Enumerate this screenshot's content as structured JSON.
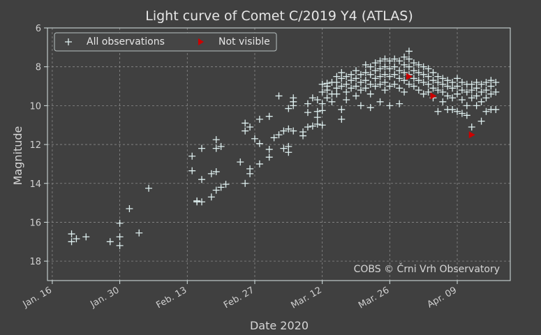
{
  "colors": {
    "background": "#404040",
    "axes_edge": "#d8e4e4",
    "grid": "#8a8a8a",
    "observation_marker": "#ddeeee",
    "not_visible_marker": "#cc0000"
  },
  "chart_data": {
    "type": "scatter",
    "title": "Light curve of Comet C/2019 Y4 (ATLAS)",
    "xlabel": "Date 2020",
    "ylabel": "Magnitude",
    "xlim": [
      "2020-01-15",
      "2020-04-20"
    ],
    "ylim": [
      19,
      6
    ],
    "y_inverted": true,
    "grid": true,
    "grid_style": "dashed",
    "legend_position": "top-left",
    "credit": "COBS © Črni Vrh Observatory",
    "xticks": [
      {
        "date": "2020-01-16",
        "label": "Jan. 16"
      },
      {
        "date": "2020-01-30",
        "label": "Jan. 30"
      },
      {
        "date": "2020-02-13",
        "label": "Feb. 13"
      },
      {
        "date": "2020-02-27",
        "label": "Feb. 27"
      },
      {
        "date": "2020-03-12",
        "label": "Mar. 12"
      },
      {
        "date": "2020-03-26",
        "label": "Mar. 26"
      },
      {
        "date": "2020-04-09",
        "label": "Apr. 09"
      }
    ],
    "yticks": [
      6,
      8,
      10,
      12,
      14,
      16,
      18
    ],
    "series": [
      {
        "name": "All observations",
        "marker": "+",
        "points": [
          [
            "2020-01-20",
            16.6
          ],
          [
            "2020-01-20",
            17.0
          ],
          [
            "2020-01-21",
            16.85
          ],
          [
            "2020-01-23",
            16.75
          ],
          [
            "2020-01-28",
            17.0
          ],
          [
            "2020-01-30",
            16.05
          ],
          [
            "2020-01-30",
            16.75
          ],
          [
            "2020-01-30",
            17.2
          ],
          [
            "2020-02-01",
            15.3
          ],
          [
            "2020-02-03",
            16.55
          ],
          [
            "2020-02-05",
            14.25
          ],
          [
            "2020-02-14",
            12.6
          ],
          [
            "2020-02-14",
            13.35
          ],
          [
            "2020-02-15",
            14.9
          ],
          [
            "2020-02-15",
            14.95
          ],
          [
            "2020-02-16",
            12.2
          ],
          [
            "2020-02-16",
            13.8
          ],
          [
            "2020-02-16",
            14.95
          ],
          [
            "2020-02-18",
            14.7
          ],
          [
            "2020-02-18",
            13.5
          ],
          [
            "2020-02-19",
            11.75
          ],
          [
            "2020-02-19",
            12.2
          ],
          [
            "2020-02-19",
            13.4
          ],
          [
            "2020-02-19",
            14.35
          ],
          [
            "2020-02-20",
            12.1
          ],
          [
            "2020-02-20",
            14.2
          ],
          [
            "2020-02-21",
            14.05
          ],
          [
            "2020-02-24",
            12.9
          ],
          [
            "2020-02-25",
            14.0
          ],
          [
            "2020-02-25",
            10.9
          ],
          [
            "2020-02-25",
            11.3
          ],
          [
            "2020-02-26",
            13.25
          ],
          [
            "2020-02-26",
            13.5
          ],
          [
            "2020-02-26",
            11.1
          ],
          [
            "2020-02-27",
            11.7
          ],
          [
            "2020-02-28",
            11.95
          ],
          [
            "2020-02-28",
            13.0
          ],
          [
            "2020-02-28",
            10.7
          ],
          [
            "2020-03-01",
            10.55
          ],
          [
            "2020-03-01",
            12.25
          ],
          [
            "2020-03-01",
            12.65
          ],
          [
            "2020-03-03",
            9.5
          ],
          [
            "2020-03-02",
            11.65
          ],
          [
            "2020-03-03",
            11.5
          ],
          [
            "2020-03-04",
            11.3
          ],
          [
            "2020-03-04",
            12.2
          ],
          [
            "2020-03-05",
            12.1
          ],
          [
            "2020-03-05",
            11.2
          ],
          [
            "2020-03-05",
            12.4
          ],
          [
            "2020-03-05",
            10.15
          ],
          [
            "2020-03-06",
            10.0
          ],
          [
            "2020-03-06",
            11.3
          ],
          [
            "2020-03-06",
            9.6
          ],
          [
            "2020-03-06",
            9.8
          ],
          [
            "2020-03-08",
            11.35
          ],
          [
            "2020-03-08",
            11.55
          ],
          [
            "2020-03-09",
            11.1
          ],
          [
            "2020-03-09",
            10.35
          ],
          [
            "2020-03-09",
            9.9
          ],
          [
            "2020-03-10",
            11.05
          ],
          [
            "2020-03-10",
            9.6
          ],
          [
            "2020-03-11",
            9.7
          ],
          [
            "2020-03-11",
            10.3
          ],
          [
            "2020-03-11",
            10.6
          ],
          [
            "2020-03-11",
            10.95
          ],
          [
            "2020-03-12",
            9.9
          ],
          [
            "2020-03-12",
            10.25
          ],
          [
            "2020-03-12",
            11.0
          ],
          [
            "2020-03-12",
            8.9
          ],
          [
            "2020-03-12",
            9.3
          ],
          [
            "2020-03-13",
            9.2
          ],
          [
            "2020-03-13",
            9.6
          ],
          [
            "2020-03-13",
            8.85
          ],
          [
            "2020-03-13",
            9.0
          ],
          [
            "2020-03-14",
            9.4
          ],
          [
            "2020-03-14",
            9.8
          ],
          [
            "2020-03-14",
            8.8
          ],
          [
            "2020-03-15",
            8.5
          ],
          [
            "2020-03-15",
            8.8
          ],
          [
            "2020-03-15",
            9.1
          ],
          [
            "2020-03-15",
            9.4
          ],
          [
            "2020-03-16",
            8.3
          ],
          [
            "2020-03-16",
            8.6
          ],
          [
            "2020-03-16",
            9.0
          ],
          [
            "2020-03-16",
            10.2
          ],
          [
            "2020-03-16",
            10.7
          ],
          [
            "2020-03-17",
            8.5
          ],
          [
            "2020-03-17",
            8.9
          ],
          [
            "2020-03-17",
            9.3
          ],
          [
            "2020-03-17",
            9.7
          ],
          [
            "2020-03-18",
            8.4
          ],
          [
            "2020-03-18",
            8.7
          ],
          [
            "2020-03-18",
            9.1
          ],
          [
            "2020-03-19",
            8.2
          ],
          [
            "2020-03-19",
            8.6
          ],
          [
            "2020-03-19",
            9.0
          ],
          [
            "2020-03-19",
            9.5
          ],
          [
            "2020-03-20",
            8.4
          ],
          [
            "2020-03-20",
            8.8
          ],
          [
            "2020-03-20",
            9.2
          ],
          [
            "2020-03-20",
            10.0
          ],
          [
            "2020-03-21",
            7.9
          ],
          [
            "2020-03-21",
            8.3
          ],
          [
            "2020-03-21",
            8.7
          ],
          [
            "2020-03-21",
            9.1
          ],
          [
            "2020-03-22",
            8.0
          ],
          [
            "2020-03-22",
            8.4
          ],
          [
            "2020-03-22",
            8.9
          ],
          [
            "2020-03-22",
            9.4
          ],
          [
            "2020-03-22",
            10.1
          ],
          [
            "2020-03-23",
            7.8
          ],
          [
            "2020-03-23",
            8.2
          ],
          [
            "2020-03-23",
            8.6
          ],
          [
            "2020-03-23",
            9.0
          ],
          [
            "2020-03-24",
            7.7
          ],
          [
            "2020-03-24",
            8.1
          ],
          [
            "2020-03-24",
            8.5
          ],
          [
            "2020-03-24",
            8.9
          ],
          [
            "2020-03-24",
            9.8
          ],
          [
            "2020-03-25",
            7.6
          ],
          [
            "2020-03-25",
            8.0
          ],
          [
            "2020-03-25",
            8.4
          ],
          [
            "2020-03-25",
            8.8
          ],
          [
            "2020-03-25",
            9.2
          ],
          [
            "2020-03-26",
            7.7
          ],
          [
            "2020-03-26",
            8.1
          ],
          [
            "2020-03-26",
            8.5
          ],
          [
            "2020-03-26",
            9.0
          ],
          [
            "2020-03-26",
            10.0
          ],
          [
            "2020-03-27",
            7.6
          ],
          [
            "2020-03-27",
            8.0
          ],
          [
            "2020-03-27",
            8.4
          ],
          [
            "2020-03-27",
            8.9
          ],
          [
            "2020-03-28",
            7.7
          ],
          [
            "2020-03-28",
            8.2
          ],
          [
            "2020-03-28",
            8.6
          ],
          [
            "2020-03-28",
            9.1
          ],
          [
            "2020-03-28",
            9.9
          ],
          [
            "2020-03-29",
            7.5
          ],
          [
            "2020-03-29",
            7.9
          ],
          [
            "2020-03-29",
            8.3
          ],
          [
            "2020-03-29",
            8.7
          ],
          [
            "2020-03-29",
            9.3
          ],
          [
            "2020-03-30",
            7.2
          ],
          [
            "2020-03-30",
            7.6
          ],
          [
            "2020-03-30",
            8.0
          ],
          [
            "2020-03-30",
            8.4
          ],
          [
            "2020-03-30",
            8.9
          ],
          [
            "2020-03-31",
            7.8
          ],
          [
            "2020-03-31",
            8.2
          ],
          [
            "2020-03-31",
            8.6
          ],
          [
            "2020-03-31",
            9.0
          ],
          [
            "2020-04-01",
            7.9
          ],
          [
            "2020-04-01",
            8.3
          ],
          [
            "2020-04-01",
            8.7
          ],
          [
            "2020-04-01",
            9.2
          ],
          [
            "2020-04-02",
            8.0
          ],
          [
            "2020-04-02",
            8.4
          ],
          [
            "2020-04-02",
            8.8
          ],
          [
            "2020-04-02",
            9.4
          ],
          [
            "2020-04-03",
            8.1
          ],
          [
            "2020-04-03",
            8.5
          ],
          [
            "2020-04-03",
            8.9
          ],
          [
            "2020-04-03",
            9.3
          ],
          [
            "2020-04-04",
            8.3
          ],
          [
            "2020-04-04",
            8.7
          ],
          [
            "2020-04-04",
            9.1
          ],
          [
            "2020-04-04",
            9.6
          ],
          [
            "2020-04-05",
            8.5
          ],
          [
            "2020-04-05",
            8.8
          ],
          [
            "2020-04-05",
            9.2
          ],
          [
            "2020-04-05",
            10.3
          ],
          [
            "2020-04-06",
            8.6
          ],
          [
            "2020-04-06",
            8.9
          ],
          [
            "2020-04-06",
            9.3
          ],
          [
            "2020-04-06",
            9.8
          ],
          [
            "2020-04-07",
            8.7
          ],
          [
            "2020-04-07",
            9.0
          ],
          [
            "2020-04-07",
            9.5
          ],
          [
            "2020-04-07",
            10.2
          ],
          [
            "2020-04-08",
            8.8
          ],
          [
            "2020-04-08",
            9.1
          ],
          [
            "2020-04-08",
            9.6
          ],
          [
            "2020-04-08",
            10.2
          ],
          [
            "2020-04-09",
            8.6
          ],
          [
            "2020-04-09",
            9.0
          ],
          [
            "2020-04-09",
            9.4
          ],
          [
            "2020-04-09",
            10.3
          ],
          [
            "2020-04-10",
            8.8
          ],
          [
            "2020-04-10",
            9.2
          ],
          [
            "2020-04-10",
            9.7
          ],
          [
            "2020-04-10",
            10.4
          ],
          [
            "2020-04-11",
            8.9
          ],
          [
            "2020-04-11",
            9.3
          ],
          [
            "2020-04-11",
            10.0
          ],
          [
            "2020-04-11",
            10.5
          ],
          [
            "2020-04-12",
            8.9
          ],
          [
            "2020-04-12",
            9.2
          ],
          [
            "2020-04-12",
            9.6
          ],
          [
            "2020-04-12",
            11.1
          ],
          [
            "2020-04-13",
            8.8
          ],
          [
            "2020-04-13",
            9.1
          ],
          [
            "2020-04-13",
            9.5
          ],
          [
            "2020-04-13",
            10.0
          ],
          [
            "2020-04-14",
            8.9
          ],
          [
            "2020-04-14",
            9.3
          ],
          [
            "2020-04-14",
            9.8
          ],
          [
            "2020-04-14",
            10.8
          ],
          [
            "2020-04-15",
            8.8
          ],
          [
            "2020-04-15",
            9.2
          ],
          [
            "2020-04-15",
            9.6
          ],
          [
            "2020-04-15",
            10.3
          ],
          [
            "2020-04-16",
            8.7
          ],
          [
            "2020-04-16",
            9.0
          ],
          [
            "2020-04-16",
            9.4
          ],
          [
            "2020-04-16",
            10.2
          ],
          [
            "2020-04-17",
            8.8
          ],
          [
            "2020-04-17",
            9.3
          ],
          [
            "2020-04-17",
            10.2
          ]
        ]
      },
      {
        "name": "Not visible",
        "marker": "triangle-right",
        "points": [
          [
            "2020-03-30",
            8.5
          ],
          [
            "2020-04-04",
            9.5
          ],
          [
            "2020-04-12",
            11.5
          ]
        ]
      }
    ]
  }
}
